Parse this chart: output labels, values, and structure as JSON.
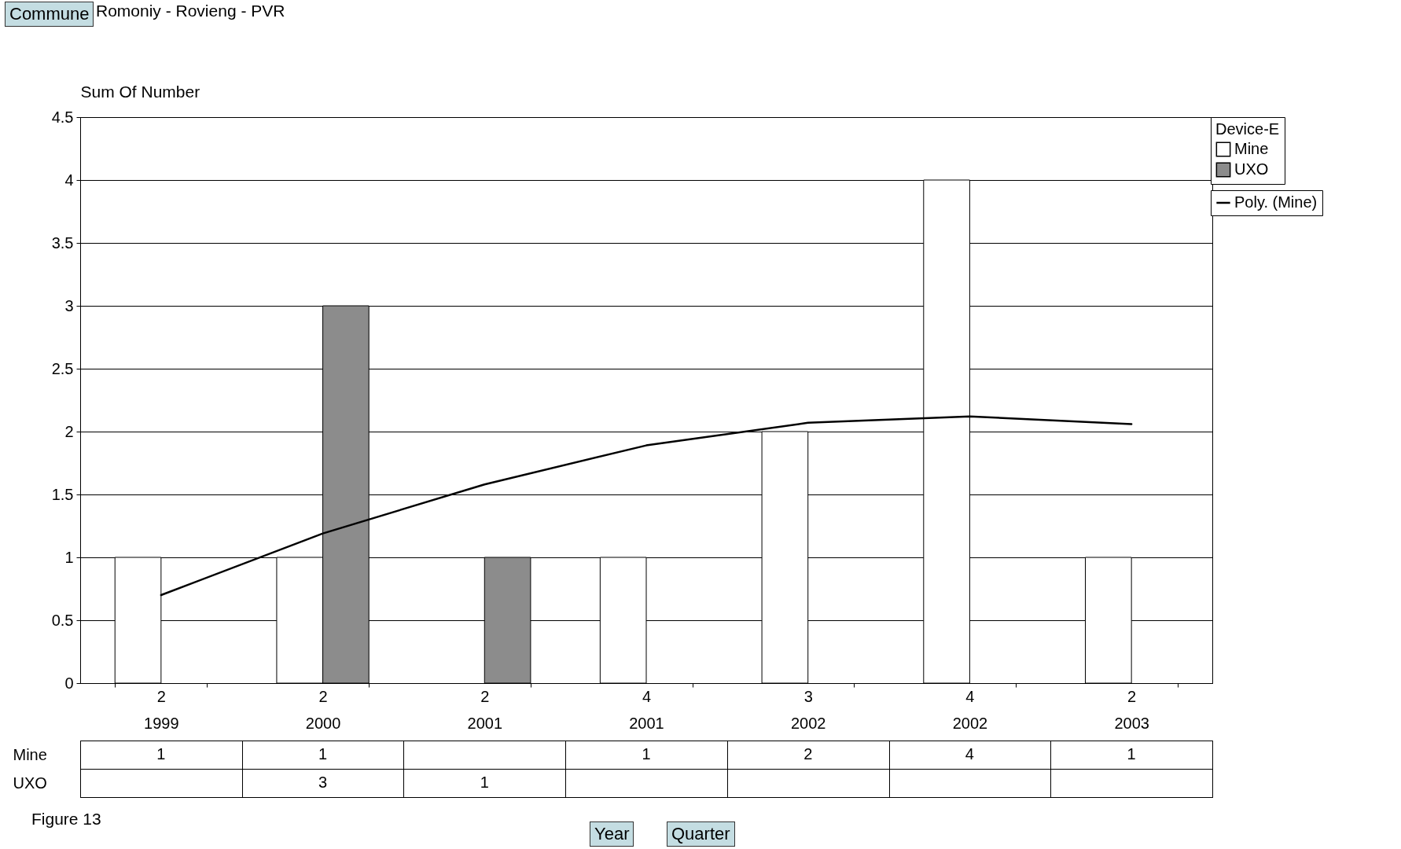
{
  "chart_data": {
    "type": "bar",
    "categories": [
      "2 1999",
      "2 2000",
      "2 2001",
      "4 2001",
      "3 2002",
      "4 2002",
      "2 2003"
    ],
    "series": [
      {
        "name": "Mine",
        "color": "#ffffff",
        "values": [
          1,
          1,
          null,
          1,
          2,
          4,
          1
        ],
        "value_labels": [
          "1",
          "1",
          null,
          "1",
          "2",
          "4",
          "1"
        ]
      },
      {
        "name": "UXO",
        "color": "#8c8c8c",
        "values": [
          null,
          3,
          1,
          null,
          null,
          null,
          null
        ],
        "value_labels": [
          null,
          "3",
          "1",
          null,
          null,
          null,
          null
        ]
      },
      {
        "name": "Poly. (Mine)",
        "type": "line",
        "color": "#000000",
        "values": [
          0.7,
          1.19,
          1.58,
          1.89,
          2.07,
          2.12,
          2.06
        ]
      }
    ],
    "ylabel": "Sum Of Number",
    "legend_title": "Device-E",
    "legend": "right",
    "ylim": [
      0,
      4.5
    ],
    "yticks": [
      0,
      0.5,
      1,
      1.5,
      2,
      2.5,
      3,
      3.5,
      4,
      4.5
    ],
    "grid": "y",
    "annotations": [
      "Commune",
      "Romoniy - Rovieng - PVR",
      "Figure 13",
      "Year",
      "Quarter"
    ]
  }
}
